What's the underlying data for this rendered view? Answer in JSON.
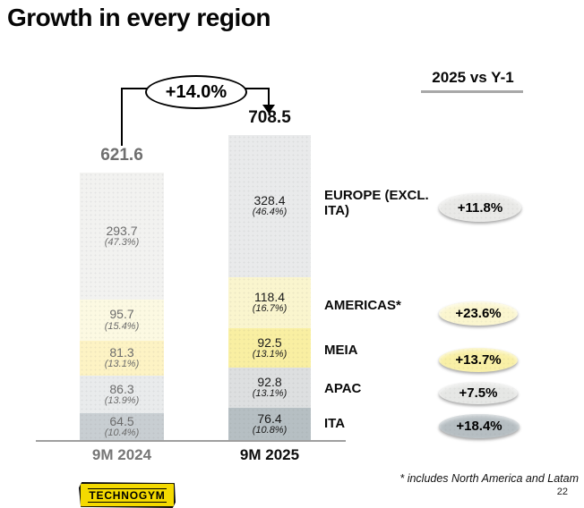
{
  "title": "Growth in every region",
  "comparison_header": "2025 vs Y-1",
  "footnote": "* includes North America and Latam",
  "page_number": "22",
  "logo_text": "TECHNOGYM",
  "chart_data": {
    "type": "bar",
    "subtype": "stacked",
    "title": "Growth in every region",
    "categories": [
      "9M 2024",
      "9M 2025"
    ],
    "totals": [
      621.6,
      708.5
    ],
    "totals_labels": [
      "621.6",
      "708.5"
    ],
    "total_growth_label": "+14.0%",
    "category_text_colors": [
      "#767676",
      "#0d0d0d"
    ],
    "segment_text_colors": [
      "#6b6b6b",
      "#1a1a1a"
    ],
    "legend_position": "right",
    "series": [
      {
        "name": "EUROPE (EXCL. ITA)",
        "values": [
          293.7,
          328.4
        ],
        "pct_labels": [
          "(47.3%)",
          "(46.4%)"
        ],
        "colors": [
          "#f2f2f0",
          "#e9eaeb"
        ],
        "growth_vs_y1": "+11.8%",
        "badge_color": "#e9e9e7"
      },
      {
        "name": "AMERICAS*",
        "values": [
          95.7,
          118.4
        ],
        "pct_labels": [
          "(15.4%)",
          "(16.7%)"
        ],
        "colors": [
          "#fcf9e2",
          "#faf5ce"
        ],
        "growth_vs_y1": "+23.6%",
        "badge_color": "#fbf6cf"
      },
      {
        "name": "MEIA",
        "values": [
          81.3,
          92.5
        ],
        "pct_labels": [
          "(13.1%)",
          "(13.1%)"
        ],
        "colors": [
          "#fdf3c4",
          "#f9efa2"
        ],
        "growth_vs_y1": "+13.7%",
        "badge_color": "#f9f0a6"
      },
      {
        "name": "APAC",
        "values": [
          86.3,
          92.8
        ],
        "pct_labels": [
          "(13.9%)",
          "(13.1%)"
        ],
        "colors": [
          "#e9ebec",
          "#dddfe0"
        ],
        "growth_vs_y1": "+7.5%",
        "badge_color": "#e6e7e5"
      },
      {
        "name": "ITA",
        "values": [
          64.5,
          76.4
        ],
        "pct_labels": [
          "(10.4%)",
          "(10.8%)"
        ],
        "colors": [
          "#c8ced2",
          "#b6bfc3"
        ],
        "growth_vs_y1": "+18.4%",
        "badge_color": "#b6bec2"
      }
    ]
  }
}
